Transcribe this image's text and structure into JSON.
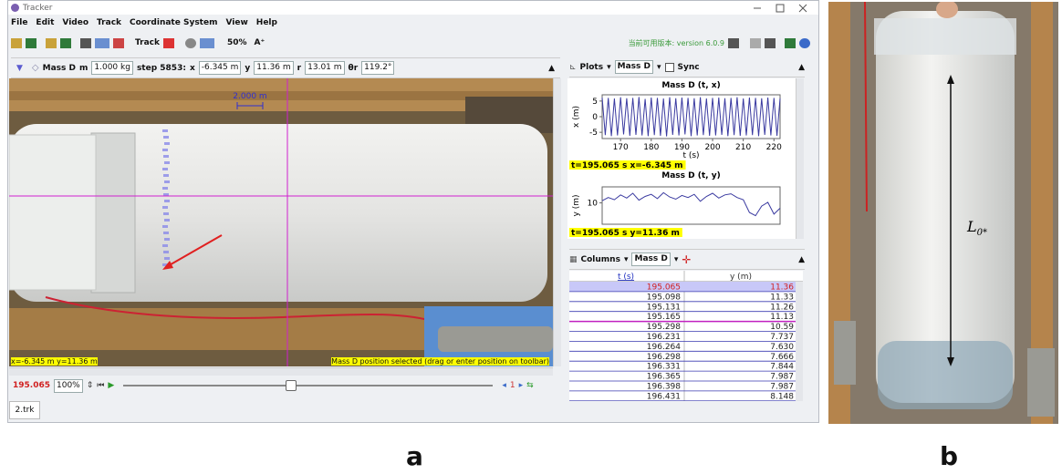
{
  "window": {
    "title": "Tracker",
    "menu": [
      "File",
      "Edit",
      "Video",
      "Track",
      "Coordinate System",
      "View",
      "Help"
    ],
    "toolbar": {
      "track": "Track",
      "zoom": "50%",
      "version": "当前可用版本: version 6.0.9"
    }
  },
  "track_bar": {
    "track": "Mass D",
    "mass_label": "m",
    "mass": "1.000 kg",
    "step": "step 5853:",
    "x_label": "x",
    "x": "-6.345 m",
    "y_label": "y",
    "y": "11.36 m",
    "r_label": "r",
    "r": "13.01 m",
    "theta_label": "θr",
    "theta": "119.2°"
  },
  "video": {
    "scale": "2.000 m",
    "readout": "x=-6.345 m  y=11.36 m",
    "status": "Mass D position selected (drag or enter position on toolbar)"
  },
  "player": {
    "time": "195.065",
    "rate": "100%"
  },
  "tab": "2.trk",
  "plots_panel": {
    "menu": "Plots",
    "track": "Mass D",
    "sync": "Sync",
    "plots": [
      {
        "title": "Mass D (t, x)",
        "xlabel": "t (s)",
        "ylabel": "x (m)",
        "color": "#3a3aa0",
        "xlim": [
          164,
          222
        ],
        "ylim": [
          -7,
          7
        ],
        "xticks": [
          170,
          180,
          190,
          200,
          210,
          220
        ],
        "yticks": [
          5,
          0,
          -5
        ],
        "x": [
          164,
          165,
          166,
          167,
          168,
          169,
          170,
          171,
          172,
          173,
          174,
          175,
          176,
          177,
          178,
          179,
          180,
          181,
          182,
          183,
          184,
          185,
          186,
          187,
          188,
          189,
          190,
          191,
          192,
          193,
          194,
          195,
          196,
          197,
          198,
          199,
          200,
          201,
          202,
          203,
          204,
          205,
          206,
          207,
          208,
          209,
          210,
          211,
          212,
          213,
          214,
          215,
          216,
          217,
          218,
          219,
          220,
          221,
          222
        ],
        "values": [
          6.1,
          -5.9,
          6.0,
          -6.2,
          5.8,
          -6.0,
          6.2,
          -5.7,
          5.9,
          -6.1,
          6.0,
          -5.8,
          6.3,
          -6.0,
          5.7,
          -6.2,
          6.1,
          -5.9,
          6.0,
          -6.1,
          5.8,
          -6.3,
          6.2,
          -5.8,
          5.9,
          -6.0,
          6.1,
          -5.7,
          6.0,
          -6.2,
          5.9,
          -6.0,
          6.2,
          -5.9,
          5.8,
          -6.1,
          6.0,
          -6.0,
          6.1,
          -5.8,
          5.9,
          -6.2,
          6.0,
          -5.9,
          6.2,
          -6.1,
          5.8,
          -6.0,
          6.1,
          -5.9,
          6.0,
          -6.2,
          5.9,
          -5.8,
          6.1,
          -6.0,
          6.0,
          -6.1,
          5.9
        ],
        "readout": "t=195.065 s  x=-6.345 m"
      },
      {
        "title": "Mass D (t, y)",
        "ylabel": "y (m)",
        "color": "#3a3aa0",
        "xlim": [
          164,
          222
        ],
        "ylim": [
          6,
          13
        ],
        "yticks": [
          10
        ],
        "x": [
          164,
          166,
          168,
          170,
          172,
          174,
          176,
          178,
          180,
          182,
          184,
          186,
          188,
          190,
          192,
          194,
          196,
          198,
          200,
          202,
          204,
          206,
          208,
          210,
          212,
          214,
          216,
          218,
          220,
          222
        ],
        "values": [
          10.4,
          11.0,
          10.6,
          11.5,
          10.9,
          11.8,
          10.5,
          11.2,
          11.6,
          10.8,
          11.9,
          11.1,
          10.7,
          11.4,
          11.0,
          11.6,
          10.3,
          11.2,
          11.8,
          10.9,
          11.5,
          11.7,
          11.0,
          10.6,
          8.2,
          7.6,
          9.4,
          10.1,
          7.9,
          9.0
        ],
        "readout": "t=195.065 s  y=11.36 m"
      }
    ]
  },
  "table_panel": {
    "menu": "Columns",
    "track": "Mass D",
    "columns": [
      "t (s)",
      "y (m)"
    ],
    "rows": [
      [
        "195.065",
        "11.36"
      ],
      [
        "195.098",
        "11.33"
      ],
      [
        "195.131",
        "11.26"
      ],
      [
        "195.165",
        "11.13"
      ],
      [
        "195.298",
        "10.59"
      ],
      [
        "196.231",
        "7.737"
      ],
      [
        "196.264",
        "7.630"
      ],
      [
        "196.298",
        "7.666"
      ],
      [
        "196.331",
        "7.844"
      ],
      [
        "196.365",
        "7.987"
      ],
      [
        "196.398",
        "7.987"
      ],
      [
        "196.431",
        "8.148"
      ]
    ]
  },
  "photo_b": {
    "length_label": "L",
    "length_sub": "0*"
  },
  "panel_labels": [
    "a",
    "b"
  ]
}
